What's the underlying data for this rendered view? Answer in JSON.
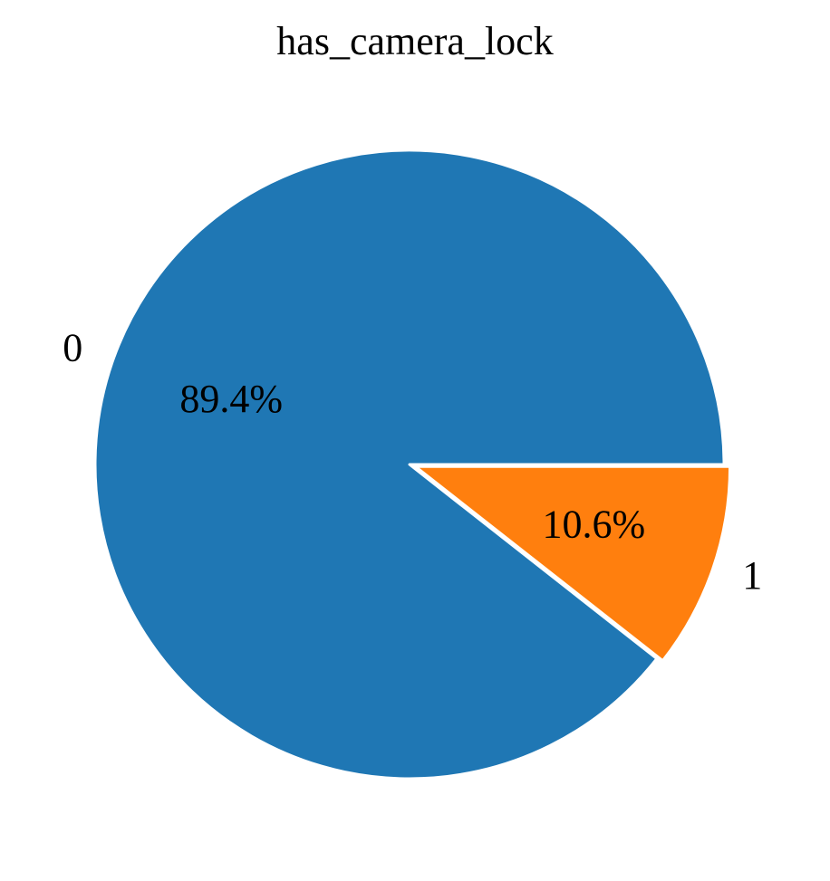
{
  "chart_data": {
    "type": "pie",
    "title": "has_camera_lock",
    "categories": [
      "0",
      "1"
    ],
    "values": [
      89.4,
      10.6
    ],
    "labels": [
      "89.4%",
      "10.6%"
    ],
    "colors": [
      "#1f77b4",
      "#ff7f0e"
    ],
    "explode": [
      0,
      0.02
    ]
  }
}
